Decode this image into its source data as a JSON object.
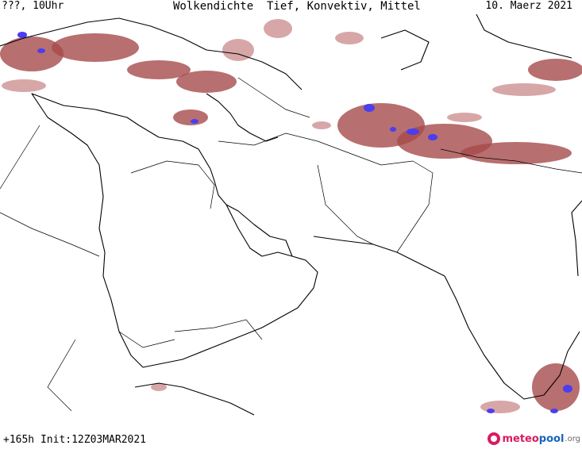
{
  "header": {
    "left": "???, 10Uhr",
    "center": "Wolkendichte  Tief, Konvektiv, Mittel",
    "right": "10. Maerz 2021"
  },
  "footer": {
    "run_info": "+165h Init:12Z03MAR2021"
  },
  "brand": {
    "part1": "meteo",
    "part2": "pool",
    "part3": ".org"
  },
  "map": {
    "colors": {
      "cloud_dense": "#a64b4b",
      "cloud_light": "#c98a8a",
      "convective": "#4b3df0",
      "coastline": "#000000"
    }
  }
}
